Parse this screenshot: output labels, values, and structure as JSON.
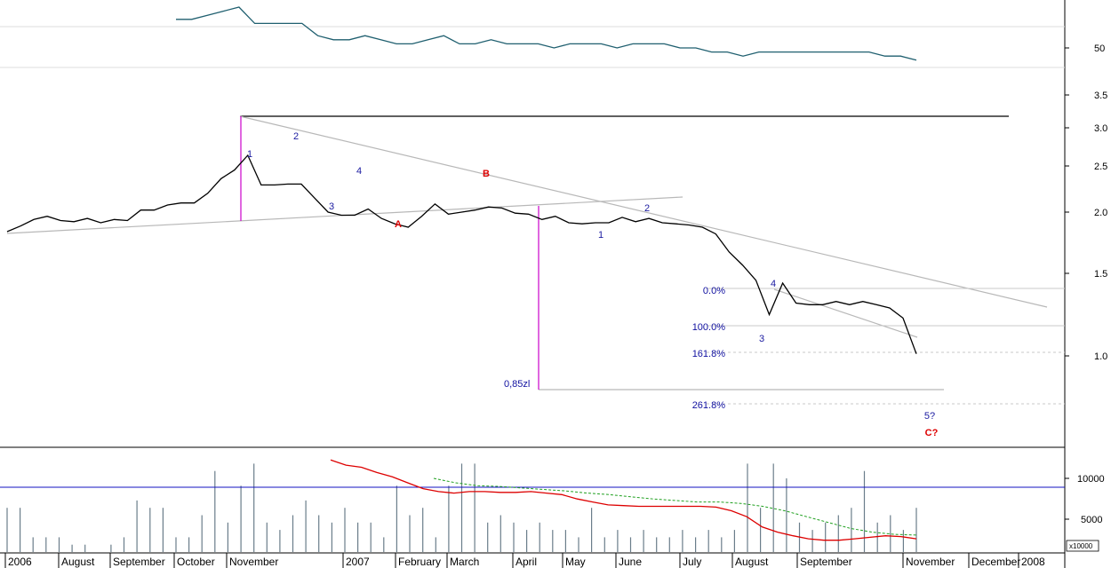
{
  "chart_data": {
    "type": "line",
    "price_axis": {
      "scale": "log",
      "ticks": [
        "50",
        "3.5",
        "3.0",
        "2.5",
        "2.0",
        "1.5",
        "1.0"
      ]
    },
    "volume_axis": {
      "ticks": [
        "10000",
        "5000"
      ],
      "unit_label": "x10000"
    },
    "time_axis": {
      "labels": [
        "2006",
        "August",
        "September",
        "October",
        "November",
        "2007",
        "February",
        "March",
        "April",
        "May",
        "June",
        "July",
        "August",
        "September",
        "November",
        "December",
        "2008"
      ]
    },
    "price_series": {
      "values": [
        1.82,
        1.87,
        1.93,
        1.96,
        1.92,
        1.91,
        1.94,
        1.9,
        1.93,
        1.92,
        2.02,
        2.02,
        2.07,
        2.09,
        2.09,
        2.19,
        2.35,
        2.45,
        2.63,
        2.28,
        2.28,
        2.29,
        2.29,
        2.14,
        2.0,
        1.97,
        1.97,
        2.03,
        1.94,
        1.89,
        1.86,
        1.96,
        2.08,
        1.98,
        2.0,
        2.02,
        2.05,
        2.04,
        1.99,
        1.98,
        1.93,
        1.96,
        1.9,
        1.89,
        1.9,
        1.9,
        1.95,
        1.91,
        1.94,
        1.9,
        1.89,
        1.88,
        1.86,
        1.8,
        1.65,
        1.55,
        1.44,
        1.22,
        1.42,
        1.29,
        1.28,
        1.28,
        1.3,
        1.28,
        1.3,
        1.28,
        1.26,
        1.2,
        1.01
      ]
    },
    "overlay_series": {
      "values": [
        57,
        57,
        58,
        59,
        60,
        56,
        56,
        56,
        56,
        53,
        52,
        52,
        53,
        52,
        51,
        51,
        52,
        53,
        51,
        51,
        52,
        51,
        51,
        51,
        50,
        51,
        51,
        51,
        50,
        51,
        51,
        51,
        50,
        50,
        49,
        49,
        48,
        49,
        49,
        49,
        49,
        49,
        49,
        49,
        49,
        48,
        48,
        47
      ]
    },
    "trendlines": [
      {
        "name": "resistance-horizontal"
      },
      {
        "name": "descending-trendline"
      },
      {
        "name": "neckline"
      },
      {
        "name": "wave-channel"
      },
      {
        "name": "target-line"
      }
    ],
    "fibonacci_levels": [
      "0.0%",
      "100.0%",
      "161.8%",
      "261.8%"
    ],
    "target_annotation": "0,85zl",
    "wave_labels": [
      "1",
      "2",
      "3",
      "4",
      "A",
      "B",
      "1",
      "2",
      "3",
      "4",
      "5?",
      "C?"
    ],
    "volume_bars": [
      6,
      6,
      2,
      2,
      2,
      1,
      1,
      0,
      1,
      2,
      7,
      6,
      6,
      2,
      2,
      5,
      11,
      4,
      9,
      12,
      4,
      3,
      5,
      7,
      5,
      4,
      6,
      4,
      4,
      2,
      9,
      5,
      6,
      2,
      9,
      12,
      12,
      4,
      5,
      4,
      3,
      4,
      3,
      3,
      2,
      6,
      2,
      3,
      2,
      3,
      2,
      2,
      3,
      2,
      3,
      2,
      3,
      12,
      6,
      12,
      10,
      4,
      3,
      4,
      5,
      6,
      11,
      4,
      5,
      3,
      6
    ],
    "volume_ma_red": [
      12.5,
      11.8,
      11.5,
      10.8,
      10.2,
      9.4,
      8.6,
      8.2,
      8.0,
      8.2,
      8.2,
      8.1,
      8.1,
      8.2,
      8.0,
      7.8,
      7.2,
      6.8,
      6.4,
      6.3,
      6.2,
      6.2,
      6.2,
      6.2,
      6.2,
      6.1,
      5.6,
      4.8,
      3.4,
      2.7,
      2.2,
      1.8,
      1.6,
      1.6,
      1.8,
      2.0,
      2.2,
      2.1,
      1.8
    ],
    "volume_ma_green": [
      10.0,
      9.4,
      9.0,
      8.9,
      8.7,
      8.5,
      8.3,
      8.0,
      7.8,
      7.5,
      7.2,
      7.0,
      6.8,
      6.8,
      6.6,
      6.2,
      5.6,
      4.8,
      4.0,
      3.2,
      2.7,
      2.4,
      2.3
    ],
    "volume_reference_level": 8.8
  }
}
